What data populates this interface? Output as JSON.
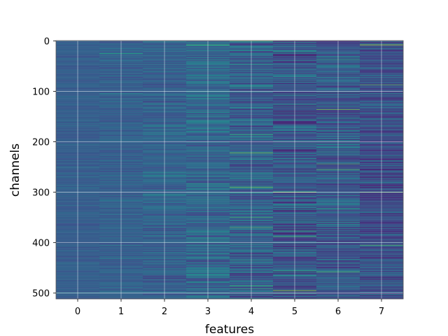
{
  "chart_data": {
    "type": "heatmap",
    "title": "",
    "xlabel": "features",
    "ylabel": "channels",
    "x_categories": [
      0,
      1,
      2,
      3,
      4,
      5,
      6,
      7
    ],
    "x_ticks": [
      "0",
      "1",
      "2",
      "3",
      "4",
      "5",
      "6",
      "7"
    ],
    "y_ticks": [
      "0",
      "100",
      "200",
      "300",
      "400",
      "500"
    ],
    "y_tick_values": [
      0,
      100,
      200,
      300,
      400,
      500
    ],
    "ylim": [
      511.5,
      -0.5
    ],
    "xlim": [
      -0.5,
      7.5
    ],
    "n_channels": 512,
    "grid": true,
    "colormap": "viridis",
    "column_base_level": [
      0.3,
      0.31,
      0.31,
      0.33,
      0.3,
      0.27,
      0.28,
      0.24
    ],
    "column_variability": [
      0.05,
      0.07,
      0.09,
      0.13,
      0.16,
      0.18,
      0.17,
      0.14
    ],
    "bright_rows": [
      {
        "feature": 1,
        "channel": 25,
        "value": 0.6
      },
      {
        "feature": 3,
        "channel": 8,
        "value": 0.7
      },
      {
        "feature": 4,
        "channel": 0,
        "value": 0.85
      },
      {
        "feature": 4,
        "channel": 222,
        "value": 0.8
      },
      {
        "feature": 4,
        "channel": 290,
        "value": 0.78
      },
      {
        "feature": 4,
        "channel": 370,
        "value": 0.72
      },
      {
        "feature": 5,
        "channel": 300,
        "value": 0.9
      },
      {
        "feature": 5,
        "channel": 495,
        "value": 0.85
      },
      {
        "feature": 6,
        "channel": 136,
        "value": 0.8
      },
      {
        "feature": 6,
        "channel": 255,
        "value": 0.72
      },
      {
        "feature": 6,
        "channel": 458,
        "value": 0.72
      },
      {
        "feature": 7,
        "channel": 8,
        "value": 0.9
      },
      {
        "feature": 7,
        "channel": 87,
        "value": 0.75
      },
      {
        "feature": 7,
        "channel": 300,
        "value": 0.78
      },
      {
        "feature": 7,
        "channel": 405,
        "value": 0.72
      }
    ]
  }
}
